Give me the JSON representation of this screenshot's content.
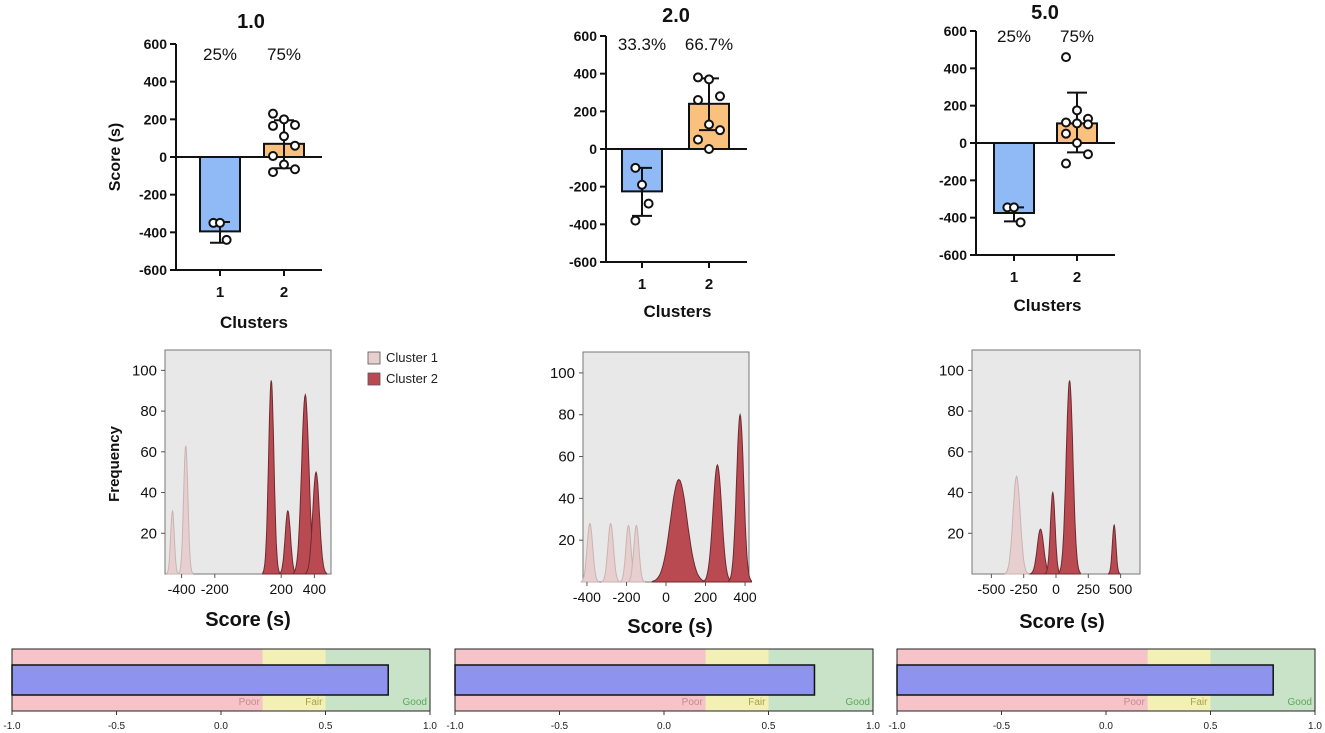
{
  "colors": {
    "cluster1_bar": "#8fbaf5",
    "cluster2_bar": "#f9c07e",
    "cluster1_density": "#e8cfcf",
    "cluster2_density": "#b94a52",
    "density_bg": "#e8e8e8",
    "poor": "#f5c3c8",
    "fair": "#f2f0b4",
    "good": "#c8e3c8",
    "silhouette_bar": "#8e94ee",
    "poor_text": "#c98a8a",
    "fair_text": "#a8a24a",
    "good_text": "#5ca85c"
  },
  "legend": {
    "cluster1": "Cluster 1",
    "cluster2": "Cluster 2"
  },
  "chart_data": [
    {
      "type": "bar",
      "panel": "1.0",
      "title": "1.0",
      "xlabel": "Clusters",
      "ylabel": "Score (s)",
      "categories": [
        "1",
        "2"
      ],
      "ylim": [
        -600,
        600
      ],
      "yticks": [
        -600,
        -400,
        -200,
        0,
        200,
        400,
        600
      ],
      "percent_labels": [
        "25%",
        "75%"
      ],
      "values": [
        -395,
        70
      ],
      "error_low": [
        -455,
        -60
      ],
      "error_high": [
        -345,
        195
      ],
      "points": [
        [
          -350,
          -350,
          -440
        ],
        [
          230,
          200,
          170,
          165,
          110,
          60,
          5,
          -40,
          -65,
          -80
        ]
      ]
    },
    {
      "type": "bar",
      "panel": "2.0",
      "title": "2.0",
      "xlabel": "Clusters",
      "ylabel": "",
      "categories": [
        "1",
        "2"
      ],
      "ylim": [
        -600,
        600
      ],
      "yticks": [
        -600,
        -400,
        -200,
        0,
        200,
        400,
        600
      ],
      "percent_labels": [
        "33.3%",
        "66.7%"
      ],
      "values": [
        -225,
        240
      ],
      "error_low": [
        -355,
        100
      ],
      "error_high": [
        -100,
        375
      ],
      "points": [
        [
          -100,
          -190,
          -290,
          -380
        ],
        [
          380,
          370,
          280,
          260,
          130,
          100,
          50,
          0
        ]
      ]
    },
    {
      "type": "bar",
      "panel": "5.0",
      "title": "5.0",
      "xlabel": "Clusters",
      "ylabel": "",
      "categories": [
        "1",
        "2"
      ],
      "ylim": [
        -600,
        600
      ],
      "yticks": [
        -600,
        -400,
        -200,
        0,
        200,
        400,
        600
      ],
      "percent_labels": [
        "25%",
        "75%"
      ],
      "values": [
        -375,
        105
      ],
      "error_low": [
        -420,
        -50
      ],
      "error_high": [
        -345,
        270
      ],
      "points": [
        [
          -345,
          -345,
          -425
        ],
        [
          460,
          175,
          130,
          110,
          105,
          100,
          50,
          0,
          -60,
          -110
        ]
      ]
    },
    {
      "type": "area",
      "panel": "1.0",
      "xlabel": "Score (s)",
      "ylabel": "Frequency",
      "xlim": [
        -500,
        500
      ],
      "xticks": [
        -400,
        -200,
        200,
        400
      ],
      "ylim": [
        0,
        110
      ],
      "yticks": [
        20,
        40,
        60,
        80,
        100
      ],
      "series": [
        {
          "name": "Cluster 1",
          "peaks": [
            [
              -455,
              31,
              11
            ],
            [
              -375,
              63,
              13
            ]
          ]
        },
        {
          "name": "Cluster 2",
          "peaks": [
            [
              140,
              95,
              16
            ],
            [
              240,
              31,
              16
            ],
            [
              345,
              88,
              22
            ],
            [
              410,
              50,
              20
            ]
          ]
        }
      ]
    },
    {
      "type": "area",
      "panel": "2.0",
      "xlabel": "Score (s)",
      "ylabel": "",
      "xlim": [
        -420,
        420
      ],
      "xticks": [
        -400,
        -200,
        0,
        200,
        400
      ],
      "ylim": [
        0,
        110
      ],
      "yticks": [
        20,
        40,
        60,
        80,
        100
      ],
      "series": [
        {
          "name": "Cluster 1",
          "peaks": [
            [
              -385,
              28,
              14
            ],
            [
              -280,
              28,
              14
            ],
            [
              -190,
              27,
              13
            ],
            [
              -150,
              27,
              13
            ]
          ]
        },
        {
          "name": "Cluster 2",
          "peaks": [
            [
              65,
              49,
              42
            ],
            [
              260,
              56,
              22
            ],
            [
              375,
              80,
              18
            ]
          ]
        }
      ]
    },
    {
      "type": "area",
      "panel": "5.0",
      "xlabel": "Score (s)",
      "ylabel": "",
      "xlim": [
        -650,
        650
      ],
      "xticks": [
        -500,
        -250,
        0,
        250,
        500
      ],
      "xticklabels": [
        "-500",
        "-250",
        "0",
        "250",
        "500"
      ],
      "ylim": [
        0,
        110
      ],
      "yticks": [
        20,
        40,
        60,
        80,
        100
      ],
      "series": [
        {
          "name": "Cluster 1",
          "peaks": [
            [
              -305,
              48,
              28
            ]
          ]
        },
        {
          "name": "Cluster 2",
          "peaks": [
            [
              -120,
              22,
              25
            ],
            [
              -25,
              40,
              18
            ],
            [
              105,
              95,
              26
            ],
            [
              450,
              24,
              14
            ]
          ]
        }
      ]
    },
    {
      "type": "bar",
      "panel": "1.0",
      "orientation": "horizontal",
      "xlim": [
        -1.0,
        1.0
      ],
      "xticks": [
        "-1.0",
        "-0.5",
        "0.0",
        "0.5",
        "1.0"
      ],
      "zones": [
        {
          "label": "Poor",
          "from": -1.0,
          "to": 0.2
        },
        {
          "label": "Fair",
          "from": 0.2,
          "to": 0.5
        },
        {
          "label": "Good",
          "from": 0.5,
          "to": 1.0
        }
      ],
      "value": 0.8
    },
    {
      "type": "bar",
      "panel": "2.0",
      "orientation": "horizontal",
      "xlim": [
        -1.0,
        1.0
      ],
      "xticks": [
        "-1.0",
        "-0.5",
        "0.0",
        "0.5",
        "1.0"
      ],
      "zones": [
        {
          "label": "Poor",
          "from": -1.0,
          "to": 0.2
        },
        {
          "label": "Fair",
          "from": 0.2,
          "to": 0.5
        },
        {
          "label": "Good",
          "from": 0.5,
          "to": 1.0
        }
      ],
      "value": 0.72
    },
    {
      "type": "bar",
      "panel": "5.0",
      "orientation": "horizontal",
      "xlim": [
        -1.0,
        1.0
      ],
      "xticks": [
        "-1.0",
        "-0.5",
        "0.0",
        "0.5",
        "1.0"
      ],
      "zones": [
        {
          "label": "Poor",
          "from": -1.0,
          "to": 0.2
        },
        {
          "label": "Fair",
          "from": 0.2,
          "to": 0.5
        },
        {
          "label": "Good",
          "from": 0.5,
          "to": 1.0
        }
      ],
      "value": 0.8
    }
  ]
}
